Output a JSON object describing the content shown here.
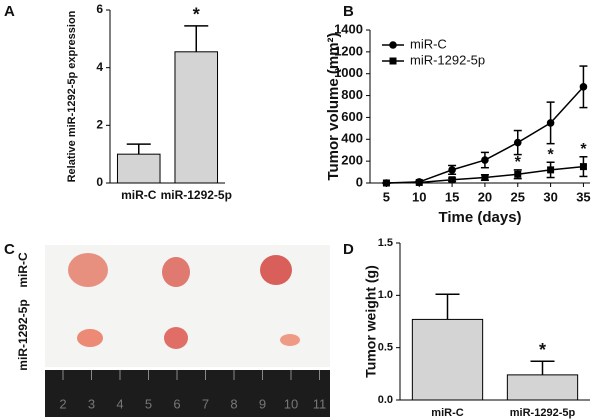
{
  "chart_data": [
    {
      "type": "bar",
      "label": "A",
      "y_label": "Relative miR-1292-5p expression",
      "categories": [
        "miR-C",
        "miR-1292-5p"
      ],
      "values": [
        1.0,
        4.55
      ],
      "errors": [
        0.35,
        0.9
      ],
      "significance": [
        null,
        "*"
      ],
      "color": "#d4d4d4",
      "ylim": [
        0,
        6
      ],
      "yticks": [
        0,
        2,
        4,
        6
      ]
    },
    {
      "type": "line",
      "label": "B",
      "y_label": "Tumor volume (mm²)",
      "x_label": "Time (days)",
      "x": [
        5,
        10,
        15,
        20,
        25,
        30,
        35
      ],
      "series": [
        {
          "name": "miR-C",
          "color": "#000000",
          "marker": "circle",
          "values": [
            0,
            10,
            120,
            210,
            370,
            550,
            880
          ],
          "errors": [
            0,
            5,
            40,
            70,
            110,
            190,
            190
          ],
          "significance": [
            null,
            null,
            null,
            null,
            null,
            null,
            null
          ]
        },
        {
          "name": "miR-1292-5p",
          "color": "#000000",
          "marker": "square",
          "values": [
            0,
            5,
            30,
            50,
            80,
            120,
            150
          ],
          "errors": [
            0,
            3,
            15,
            25,
            40,
            70,
            90
          ],
          "significance": [
            null,
            null,
            null,
            null,
            "*",
            "*",
            "*"
          ]
        }
      ],
      "xlim": [
        2.5,
        36
      ],
      "xticks": [
        5,
        10,
        15,
        20,
        25,
        30,
        35
      ],
      "ylim": [
        0,
        1400
      ],
      "yticks": [
        0,
        200,
        400,
        600,
        800,
        1000,
        1200,
        1400
      ],
      "legend": "upper-left"
    },
    {
      "type": "bar",
      "label": "D",
      "y_label": "Tumor weight (g)",
      "categories": [
        "miR-C",
        "miR-1292-5p"
      ],
      "values": [
        0.77,
        0.24
      ],
      "errors": [
        0.24,
        0.13
      ],
      "significance": [
        null,
        "*"
      ],
      "color": "#d4d4d4",
      "ylim": [
        0,
        1.5
      ],
      "yticks": [
        {
          "value": 0,
          "label": "0.0"
        },
        {
          "value": 0.5,
          "label": "0.5"
        },
        {
          "value": 1.0,
          "label": "1.0"
        },
        {
          "value": 1.5,
          "label": "1.5"
        }
      ]
    }
  ],
  "photo": {
    "label": "C",
    "rows": [
      "miR-C",
      "miR-1292-5p"
    ],
    "ruler": [
      "2",
      "3",
      "4",
      "5",
      "6",
      "7",
      "8",
      "9",
      "10",
      "11"
    ]
  }
}
